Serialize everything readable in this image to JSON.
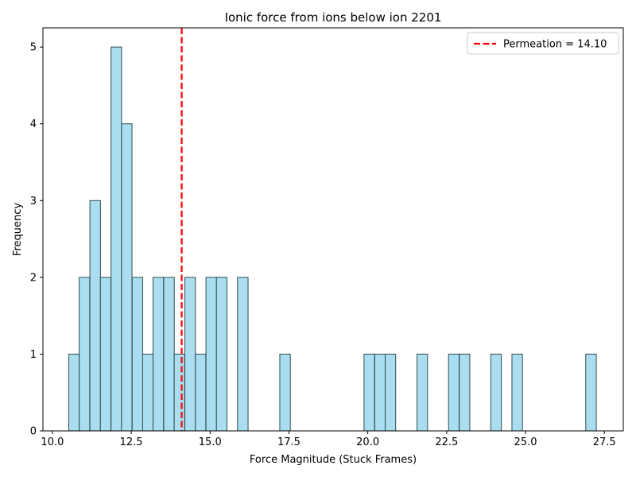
{
  "chart_data": {
    "type": "histogram",
    "title": "Ionic force from ions below ion 2201",
    "xlabel": "Force Magnitude (Stuck Frames)",
    "ylabel": "Frequency",
    "xlim": [
      9.7,
      28.1
    ],
    "ylim": [
      0,
      5.25
    ],
    "xticks": [
      10.0,
      12.5,
      15.0,
      17.5,
      20.0,
      22.5,
      25.0,
      27.5
    ],
    "xtick_labels": [
      "10.0",
      "12.5",
      "15.0",
      "17.5",
      "20.0",
      "22.5",
      "25.0",
      "27.5"
    ],
    "yticks": [
      0,
      1,
      2,
      3,
      4,
      5
    ],
    "ytick_labels": [
      "0",
      "1",
      "2",
      "3",
      "4",
      "5"
    ],
    "bin_width": 0.334,
    "bar_fill": "#87ceeb",
    "bar_edge": "#2f4f4f",
    "bins": [
      {
        "start": 10.52,
        "count": 1
      },
      {
        "start": 10.85,
        "count": 2
      },
      {
        "start": 11.19,
        "count": 3
      },
      {
        "start": 11.52,
        "count": 2
      },
      {
        "start": 11.86,
        "count": 5
      },
      {
        "start": 12.19,
        "count": 4
      },
      {
        "start": 12.53,
        "count": 2
      },
      {
        "start": 12.86,
        "count": 1
      },
      {
        "start": 13.19,
        "count": 2
      },
      {
        "start": 13.53,
        "count": 2
      },
      {
        "start": 13.86,
        "count": 1
      },
      {
        "start": 14.2,
        "count": 2
      },
      {
        "start": 14.53,
        "count": 1
      },
      {
        "start": 14.87,
        "count": 2
      },
      {
        "start": 15.2,
        "count": 2
      },
      {
        "start": 15.87,
        "count": 2
      },
      {
        "start": 17.21,
        "count": 1
      },
      {
        "start": 19.88,
        "count": 1
      },
      {
        "start": 20.22,
        "count": 1
      },
      {
        "start": 20.55,
        "count": 1
      },
      {
        "start": 21.56,
        "count": 1
      },
      {
        "start": 22.56,
        "count": 1
      },
      {
        "start": 22.9,
        "count": 1
      },
      {
        "start": 23.9,
        "count": 1
      },
      {
        "start": 24.57,
        "count": 1
      },
      {
        "start": 26.91,
        "count": 1
      }
    ],
    "reference_line": {
      "x": 14.1,
      "label": "Permeation = 14.10",
      "color": "#ff0000",
      "style": "dashed"
    },
    "legend_position": "top-right",
    "grid": false
  }
}
